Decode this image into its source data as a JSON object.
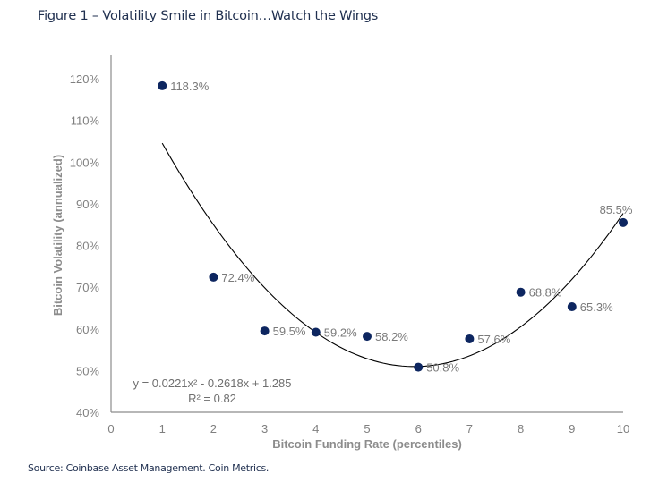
{
  "header": {
    "title": "Figure 1 – Volatility Smile in Bitcoin…Watch the Wings"
  },
  "footer": {
    "source": "Source: Coinbase Asset Management. Coin Metrics."
  },
  "colors": {
    "marker": "#0d2660",
    "trendline": "#000000",
    "axis": "#8c8c8c"
  },
  "chart_data": {
    "type": "scatter",
    "title": "Figure 1 – Volatility Smile in Bitcoin…Watch the Wings",
    "xlabel": "Bitcoin Funding Rate (percentiles)",
    "ylabel": "Bitcoin Volatility (annualized)",
    "xlim": [
      0,
      10
    ],
    "ylim": [
      40,
      120
    ],
    "xticks": [
      0,
      1,
      2,
      3,
      4,
      5,
      6,
      7,
      8,
      9,
      10
    ],
    "xtick_labels": [
      "0",
      "1",
      "2",
      "3",
      "4",
      "5",
      "6",
      "7",
      "8",
      "9",
      "10"
    ],
    "yticks": [
      40,
      50,
      60,
      70,
      80,
      90,
      100,
      110,
      120
    ],
    "ytick_labels": [
      "40%",
      "50%",
      "60%",
      "70%",
      "80%",
      "90%",
      "100%",
      "110%",
      "120%"
    ],
    "grid": false,
    "legend": "none",
    "points": [
      {
        "x": 1,
        "y": 118.3,
        "label": "118.3%"
      },
      {
        "x": 2,
        "y": 72.4,
        "label": "72.4%"
      },
      {
        "x": 3,
        "y": 59.5,
        "label": "59.5%"
      },
      {
        "x": 4,
        "y": 59.2,
        "label": "59.2%"
      },
      {
        "x": 5,
        "y": 58.2,
        "label": "58.2%"
      },
      {
        "x": 6,
        "y": 50.8,
        "label": "50.8%"
      },
      {
        "x": 7,
        "y": 57.6,
        "label": "57.6%"
      },
      {
        "x": 8,
        "y": 68.8,
        "label": "68.8%"
      },
      {
        "x": 9,
        "y": 65.3,
        "label": "65.3%"
      },
      {
        "x": 10,
        "y": 85.5,
        "label": "85.5%"
      }
    ],
    "trendline": {
      "type": "polynomial",
      "order": 2,
      "coefficients": {
        "a": 0.0221,
        "b": -0.2618,
        "c": 1.285
      },
      "x_range": [
        1,
        10
      ],
      "equation_label": "y = 0.0221x² - 0.2618x + 1.285",
      "r2_label": "R² = 0.82",
      "position": "bottom-left"
    }
  }
}
